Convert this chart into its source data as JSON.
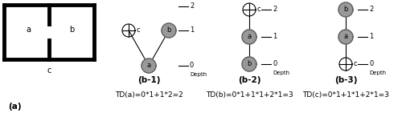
{
  "fig_width": 5.0,
  "fig_height": 1.41,
  "dpi": 100,
  "background": "#ffffff",
  "node_fill": "#999999",
  "node_edge": "#555555",
  "text_color": "#000000",
  "formula_fontsize": 6.5,
  "label_fontsize": 7.0,
  "bold_fontsize": 7.5,
  "small_fontsize": 6.0,
  "caption_a": "(a)",
  "caption_b1": "(b-1)",
  "caption_b2": "(b-2)",
  "caption_b3": "(b-3)",
  "formula_b1": "TD(a)=0*1+1*2=2",
  "formula_b2": "TD(b)=0*1+1*1+2*1=3",
  "formula_b3": "TD(c)=0*1+1*1+2*1=3"
}
